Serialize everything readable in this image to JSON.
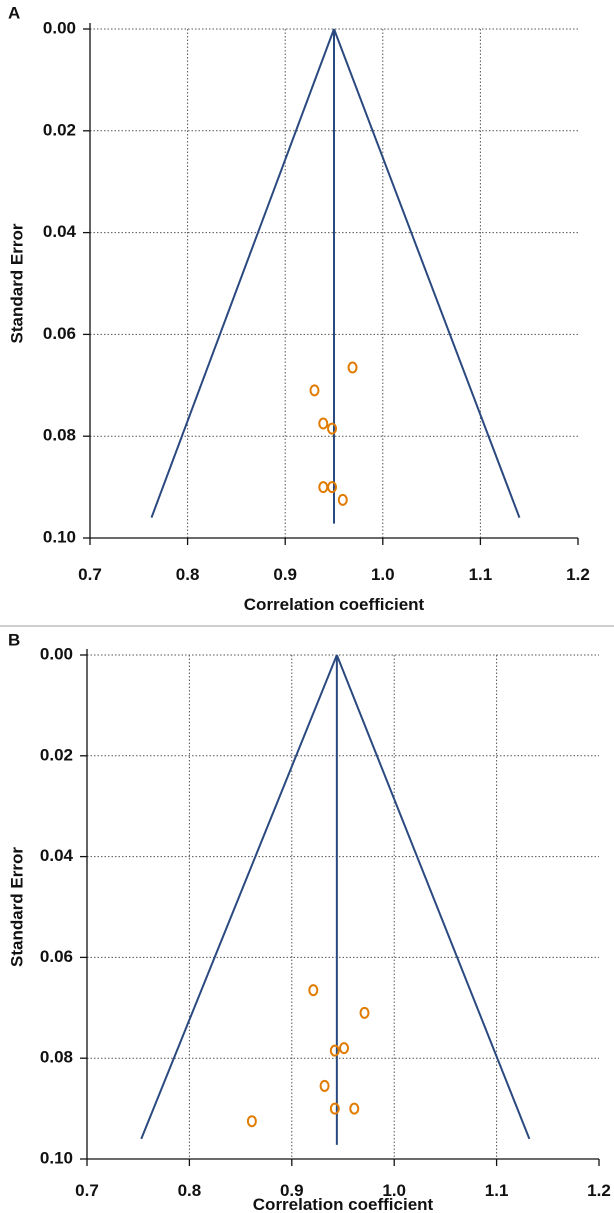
{
  "colors": {
    "funnel": "#2a4a7f",
    "points": "#e07b00",
    "grid": "#555555",
    "axis": "#111111",
    "separator": "#cfcfcf"
  },
  "chart_data": [
    {
      "type": "scatter",
      "panel_label": "A",
      "xlabel": "Correlation coefficient",
      "ylabel": "Standard Error",
      "xlim": [
        0.7,
        1.2
      ],
      "ylim": [
        0.0,
        0.1
      ],
      "y_inverted": true,
      "grid": true,
      "x_ticks": [
        "0.7",
        "0.8",
        "0.9",
        "1.0",
        "1.1",
        "1.2"
      ],
      "y_ticks": [
        "0.00",
        "0.02",
        "0.04",
        "0.06",
        "0.08",
        "0.10"
      ],
      "pooled_estimate": 0.95,
      "funnel": {
        "apex_se": 0.0,
        "base_se": 0.096,
        "left_base_x": 0.763,
        "right_base_x": 1.14
      },
      "points": [
        {
          "x": 0.969,
          "y": 0.0665
        },
        {
          "x": 0.93,
          "y": 0.071
        },
        {
          "x": 0.939,
          "y": 0.0775
        },
        {
          "x": 0.948,
          "y": 0.0785
        },
        {
          "x": 0.939,
          "y": 0.09
        },
        {
          "x": 0.948,
          "y": 0.09
        },
        {
          "x": 0.959,
          "y": 0.0925
        }
      ]
    },
    {
      "type": "scatter",
      "panel_label": "B",
      "xlabel": "Correlation coefficient",
      "ylabel": "Standard Error",
      "xlim": [
        0.7,
        1.2
      ],
      "ylim": [
        0.0,
        0.1
      ],
      "y_inverted": true,
      "grid": true,
      "x_ticks": [
        "0.7",
        "0.8",
        "0.9",
        "1.0",
        "1.1",
        "1.2"
      ],
      "y_ticks": [
        "0.00",
        "0.02",
        "0.04",
        "0.06",
        "0.08",
        "0.10"
      ],
      "pooled_estimate": 0.944,
      "funnel": {
        "apex_se": 0.0,
        "base_se": 0.096,
        "left_base_x": 0.753,
        "right_base_x": 1.132
      },
      "points": [
        {
          "x": 0.921,
          "y": 0.0665
        },
        {
          "x": 0.971,
          "y": 0.071
        },
        {
          "x": 0.942,
          "y": 0.0785
        },
        {
          "x": 0.951,
          "y": 0.078
        },
        {
          "x": 0.932,
          "y": 0.0855
        },
        {
          "x": 0.942,
          "y": 0.09
        },
        {
          "x": 0.961,
          "y": 0.09
        },
        {
          "x": 0.861,
          "y": 0.0925
        }
      ]
    }
  ]
}
